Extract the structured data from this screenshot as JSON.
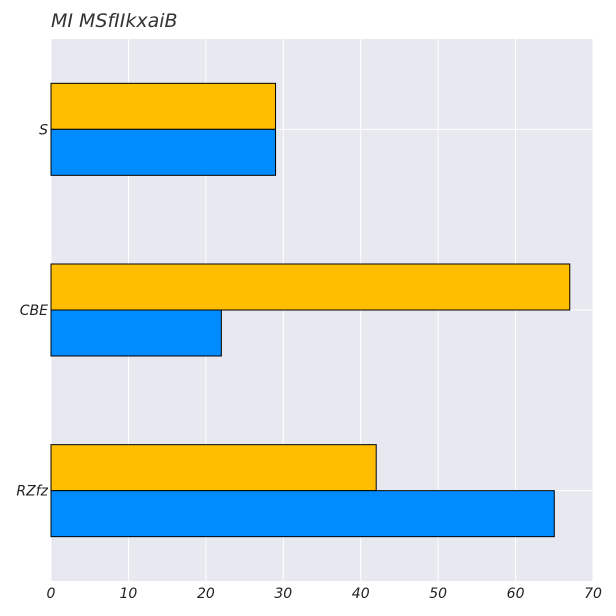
{
  "chart_data": {
    "type": "bar",
    "orientation": "horizontal",
    "title": "MI MSfIIkxaiB",
    "xlabel": "",
    "ylabel": "",
    "categories": [
      "S",
      "CBE",
      "RZfz"
    ],
    "series": [
      {
        "color": "#ffbf00",
        "values": [
          29,
          67,
          42
        ]
      },
      {
        "color": "#008cff",
        "values": [
          29,
          22,
          65
        ]
      }
    ],
    "xlim": [
      0,
      70
    ],
    "xticks": [
      0,
      10,
      20,
      30,
      40,
      50,
      60,
      70
    ],
    "grid": true,
    "background": "#e8e8f0"
  }
}
